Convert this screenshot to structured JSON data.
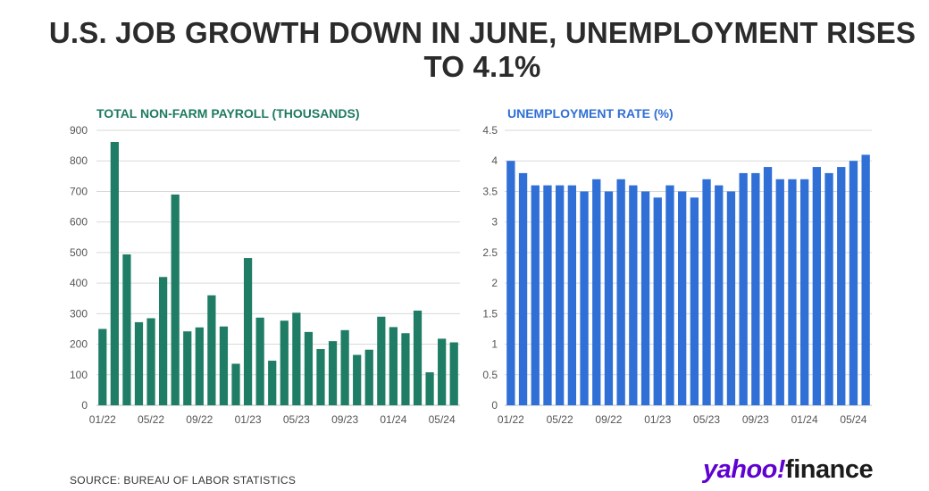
{
  "title": "U.S. JOB GROWTH DOWN IN JUNE, UNEMPLOYMENT RISES TO 4.1%",
  "source": "SOURCE: BUREAU OF LABOR STATISTICS",
  "logo": {
    "yahoo": "yahoo!",
    "finance": "finance"
  },
  "colors": {
    "payroll": "#1f7d65",
    "unemployment": "#2f6fd6",
    "grid": "#d9d9d9",
    "title": "#2b2b2b"
  },
  "chart_data": [
    {
      "type": "bar",
      "title": "TOTAL NON-FARM PAYROLL (THOUSANDS)",
      "x": [
        "01/22",
        "02/22",
        "03/22",
        "04/22",
        "05/22",
        "06/22",
        "07/22",
        "08/22",
        "09/22",
        "10/22",
        "11/22",
        "12/22",
        "01/23",
        "02/23",
        "03/23",
        "04/23",
        "05/23",
        "06/23",
        "07/23",
        "08/23",
        "09/23",
        "10/23",
        "11/23",
        "12/23",
        "01/24",
        "02/24",
        "03/24",
        "04/24",
        "05/24",
        "06/24"
      ],
      "values": [
        250,
        862,
        494,
        272,
        285,
        420,
        690,
        242,
        255,
        360,
        258,
        136,
        482,
        287,
        146,
        277,
        303,
        240,
        184,
        210,
        246,
        165,
        182,
        290,
        256,
        236,
        310,
        108,
        218,
        206
      ],
      "x_tick_labels": [
        "01/22",
        "05/22",
        "09/22",
        "01/23",
        "05/23",
        "09/23",
        "01/24",
        "05/24"
      ],
      "y_ticks": [
        0,
        100,
        200,
        300,
        400,
        500,
        600,
        700,
        800,
        900
      ],
      "ylim": [
        0,
        900
      ],
      "grid": true
    },
    {
      "type": "bar",
      "title": "UNEMPLOYMENT RATE (%)",
      "x": [
        "01/22",
        "02/22",
        "03/22",
        "04/22",
        "05/22",
        "06/22",
        "07/22",
        "08/22",
        "09/22",
        "10/22",
        "11/22",
        "12/22",
        "01/23",
        "02/23",
        "03/23",
        "04/23",
        "05/23",
        "06/23",
        "07/23",
        "08/23",
        "09/23",
        "10/23",
        "11/23",
        "12/23",
        "01/24",
        "02/24",
        "03/24",
        "04/24",
        "05/24",
        "06/24"
      ],
      "values": [
        4.0,
        3.8,
        3.6,
        3.6,
        3.6,
        3.6,
        3.5,
        3.7,
        3.5,
        3.7,
        3.6,
        3.5,
        3.4,
        3.6,
        3.5,
        3.4,
        3.7,
        3.6,
        3.5,
        3.8,
        3.8,
        3.9,
        3.7,
        3.7,
        3.7,
        3.9,
        3.8,
        3.9,
        4.0,
        4.1
      ],
      "x_tick_labels": [
        "01/22",
        "05/22",
        "09/22",
        "01/23",
        "05/23",
        "09/23",
        "01/24",
        "05/24"
      ],
      "y_ticks": [
        "0",
        "0.5",
        "1",
        "1.5",
        "2",
        "2.5",
        "3",
        "3.5",
        "4",
        "4.5"
      ],
      "ylim": [
        0,
        4.5
      ],
      "grid": true
    }
  ]
}
